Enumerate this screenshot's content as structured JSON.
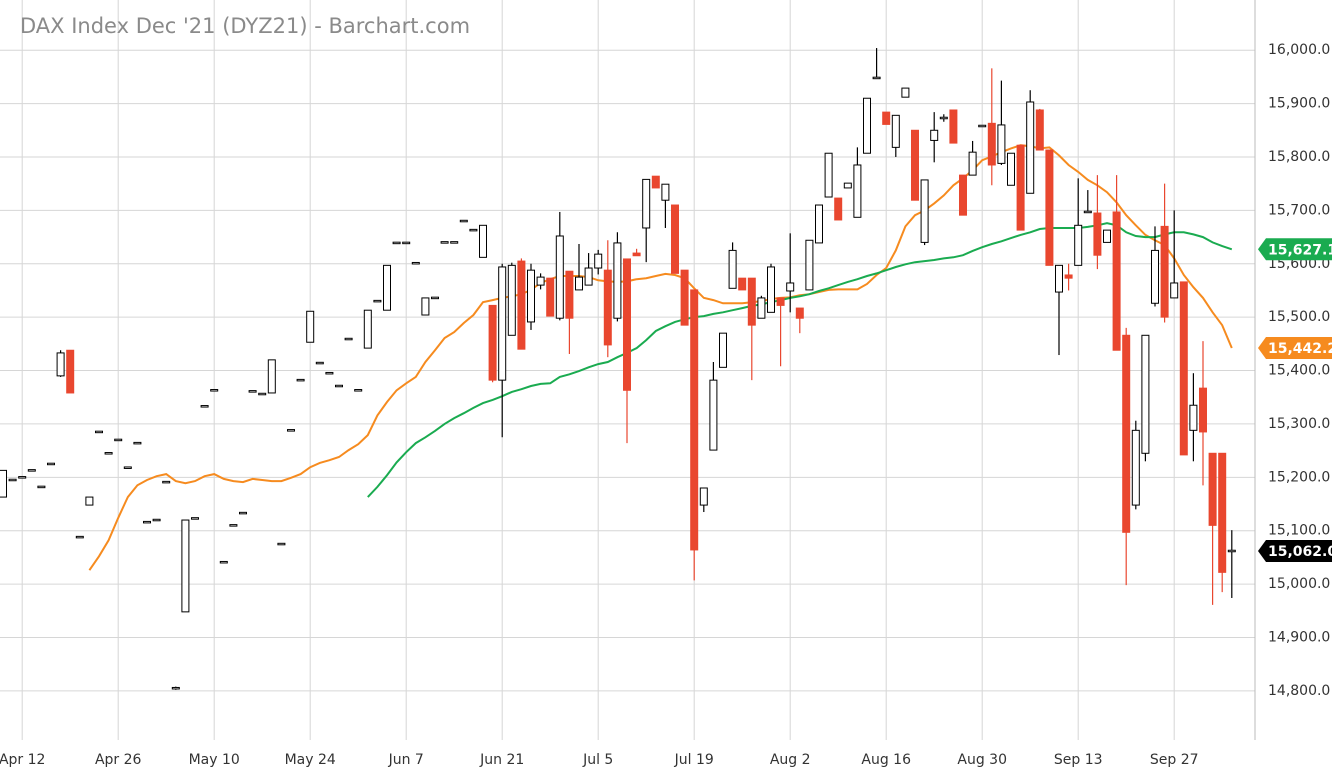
{
  "chart_data": {
    "type": "candlestick",
    "title": "DAX Index Dec '21 (DYZ21) - Barchart.com",
    "categories": [
      null,
      null,
      "Apr 12",
      null,
      null,
      null,
      null,
      null,
      null,
      null,
      null,
      null,
      "Apr 26",
      null,
      null,
      null,
      null,
      null,
      null,
      null,
      null,
      null,
      "May 10",
      null,
      null,
      null,
      null,
      null,
      null,
      null,
      null,
      null,
      "May 24",
      null,
      null,
      null,
      null,
      null,
      null,
      null,
      null,
      null,
      "Jun 7",
      null,
      null,
      null,
      null,
      null,
      null,
      null,
      null,
      null,
      "Jun 21",
      null,
      null,
      null,
      null,
      null,
      null,
      null,
      null,
      null,
      "Jul 5",
      null,
      null,
      null,
      null,
      null,
      null,
      null,
      null,
      null,
      "Jul 19",
      null,
      null,
      null,
      null,
      null,
      null,
      null,
      null,
      null,
      "Aug 2",
      null,
      null,
      null,
      null,
      null,
      null,
      null,
      null,
      null,
      "Aug 16",
      null,
      null,
      null,
      null,
      null,
      null,
      null,
      null,
      null,
      "Aug 30",
      null,
      null,
      null,
      null,
      null,
      null,
      null,
      null,
      null,
      "Sep 13",
      null,
      null,
      null,
      null,
      null,
      null,
      null,
      null,
      null,
      "Sep 27",
      null,
      null,
      null,
      null,
      null,
      null
    ],
    "ohlc": [
      [
        15163,
        15213,
        15163,
        15213
      ],
      [
        15195,
        15195,
        15195,
        15195
      ],
      [
        15200,
        15200,
        15200,
        15200
      ],
      [
        15213,
        15213,
        15213,
        15213
      ],
      [
        15182,
        15182,
        15182,
        15182
      ],
      [
        15225,
        15225,
        15225,
        15225
      ],
      [
        15390,
        15438,
        15388,
        15433
      ],
      [
        15438,
        15438,
        15358,
        15358
      ],
      [
        15088,
        15088,
        15088,
        15088
      ],
      [
        15148,
        15163,
        15148,
        15163
      ],
      [
        15285,
        15285,
        15285,
        15285
      ],
      [
        15245,
        15245,
        15245,
        15245
      ],
      [
        15270,
        15270,
        15270,
        15270
      ],
      [
        15218,
        15218,
        15218,
        15218
      ],
      [
        15264,
        15264,
        15264,
        15264
      ],
      [
        15116,
        15116,
        15116,
        15116
      ],
      [
        15120,
        15120,
        15120,
        15120
      ],
      [
        15191,
        15191,
        15191,
        15191
      ],
      [
        14805,
        14808,
        14802,
        14805
      ],
      [
        14948,
        15120,
        14948,
        15120
      ],
      [
        15123,
        15123,
        15123,
        15123
      ],
      [
        15333,
        15333,
        15333,
        15333
      ],
      [
        15363,
        15363,
        15363,
        15363
      ],
      [
        15041,
        15041,
        15041,
        15041
      ],
      [
        15110,
        15110,
        15110,
        15110
      ],
      [
        15133,
        15133,
        15133,
        15133
      ],
      [
        15361,
        15361,
        15361,
        15361
      ],
      [
        15356,
        15356,
        15356,
        15356
      ],
      [
        15358,
        15420,
        15358,
        15420
      ],
      [
        15075,
        15075,
        15075,
        15075
      ],
      [
        15288,
        15288,
        15288,
        15288
      ],
      [
        15382,
        15382,
        15382,
        15382
      ],
      [
        15453,
        15511,
        15453,
        15511
      ],
      [
        15414,
        15414,
        15414,
        15414
      ],
      [
        15395,
        15395,
        15395,
        15395
      ],
      [
        15371,
        15371,
        15371,
        15371
      ],
      [
        15459,
        15459,
        15459,
        15459
      ],
      [
        15363,
        15363,
        15363,
        15363
      ],
      [
        15442,
        15513,
        15442,
        15513
      ],
      [
        15530,
        15530,
        15530,
        15530
      ],
      [
        15513,
        15597,
        15513,
        15597
      ],
      [
        15639,
        15639,
        15639,
        15639
      ],
      [
        15639,
        15639,
        15639,
        15639
      ],
      [
        15601,
        15601,
        15601,
        15601
      ],
      [
        15504,
        15536,
        15504,
        15536
      ],
      [
        15536,
        15536,
        15536,
        15536
      ],
      [
        15640,
        15640,
        15640,
        15640
      ],
      [
        15640,
        15640,
        15640,
        15640
      ],
      [
        15680,
        15680,
        15680,
        15680
      ],
      [
        15663,
        15663,
        15663,
        15663
      ],
      [
        15612,
        15672,
        15612,
        15672
      ],
      [
        15522,
        15522,
        15378,
        15382
      ],
      [
        15382,
        15600,
        15275,
        15594
      ],
      [
        15466,
        15602,
        15466,
        15597
      ],
      [
        15605,
        15610,
        15440,
        15440
      ],
      [
        15491,
        15600,
        15476,
        15588
      ],
      [
        15560,
        15582,
        15552,
        15575
      ],
      [
        15573,
        15573,
        15502,
        15502
      ],
      [
        15498,
        15697,
        15494,
        15652
      ],
      [
        15586,
        15586,
        15431,
        15498
      ],
      [
        15551,
        15637,
        15551,
        15575
      ],
      [
        15560,
        15620,
        15560,
        15592
      ],
      [
        15592,
        15626,
        15580,
        15618
      ],
      [
        15588,
        15644,
        15425,
        15448
      ],
      [
        15498,
        15659,
        15492,
        15639
      ],
      [
        15609,
        15609,
        15264,
        15363
      ],
      [
        15620,
        15628,
        15615,
        15615
      ],
      [
        15667,
        15758,
        15603,
        15758
      ],
      [
        15764,
        15764,
        15742,
        15742
      ],
      [
        15719,
        15749,
        15667,
        15749
      ],
      [
        15710,
        15710,
        15582,
        15582
      ],
      [
        15588,
        15588,
        15485,
        15485
      ],
      [
        15551,
        15551,
        15007,
        15064
      ],
      [
        15148,
        15180,
        15135,
        15180
      ],
      [
        15251,
        15416,
        15251,
        15382
      ],
      [
        15406,
        15470,
        15406,
        15470
      ],
      [
        15554,
        15640,
        15554,
        15625
      ],
      [
        15573,
        15573,
        15551,
        15551
      ],
      [
        15573,
        15573,
        15382,
        15485
      ],
      [
        15498,
        15540,
        15498,
        15536
      ],
      [
        15509,
        15600,
        15509,
        15594
      ],
      [
        15536,
        15536,
        15408,
        15522
      ],
      [
        15549,
        15657,
        15509,
        15564
      ],
      [
        15517,
        15517,
        15470,
        15498
      ],
      [
        15551,
        15644,
        15551,
        15644
      ],
      [
        15639,
        15710,
        15639,
        15710
      ],
      [
        15725,
        15807,
        15725,
        15807
      ],
      [
        15723,
        15723,
        15682,
        15682
      ],
      [
        15742,
        15751,
        15742,
        15751
      ],
      [
        15687,
        15818,
        15687,
        15785
      ],
      [
        15807,
        15910,
        15807,
        15910
      ],
      [
        15948,
        16004,
        15948,
        15948
      ],
      [
        15884,
        15884,
        15861,
        15861
      ],
      [
        15818,
        15878,
        15800,
        15878
      ],
      [
        15912,
        15929,
        15912,
        15929
      ],
      [
        15850,
        15850,
        15719,
        15719
      ],
      [
        15640,
        15757,
        15635,
        15757
      ],
      [
        15831,
        15884,
        15790,
        15850
      ],
      [
        15873,
        15880,
        15866,
        15873
      ],
      [
        15888,
        15888,
        15826,
        15826
      ],
      [
        15766,
        15766,
        15691,
        15691
      ],
      [
        15766,
        15830,
        15766,
        15809
      ],
      [
        15858,
        15858,
        15858,
        15858
      ],
      [
        15863,
        15966,
        15747,
        15785
      ],
      [
        15788,
        15943,
        15785,
        15860
      ],
      [
        15747,
        15807,
        15747,
        15807
      ],
      [
        15822,
        15822,
        15663,
        15663
      ],
      [
        15732,
        15925,
        15732,
        15903
      ],
      [
        15888,
        15890,
        15813,
        15813
      ],
      [
        15813,
        15813,
        15597,
        15597
      ],
      [
        15547,
        15597,
        15429,
        15597
      ],
      [
        15579,
        15600,
        15550,
        15573
      ],
      [
        15597,
        15760,
        15597,
        15672
      ],
      [
        15697,
        15738,
        15697,
        15697
      ],
      [
        15695,
        15766,
        15590,
        15616
      ],
      [
        15640,
        15663,
        15640,
        15663
      ],
      [
        15697,
        15766,
        15438,
        15438
      ],
      [
        15466,
        15480,
        14998,
        15097
      ],
      [
        15148,
        15306,
        15140,
        15288
      ],
      [
        15245,
        15466,
        15230,
        15466
      ],
      [
        15526,
        15670,
        15520,
        15625
      ],
      [
        15670,
        15750,
        15490,
        15500
      ],
      [
        15536,
        15700,
        15536,
        15564
      ],
      [
        15566,
        15566,
        15242,
        15242
      ],
      [
        15288,
        15395,
        15230,
        15335
      ],
      [
        15367,
        15455,
        15185,
        15285
      ],
      [
        15245,
        15245,
        14961,
        15110
      ],
      [
        15245,
        15245,
        14985,
        15022
      ],
      [
        15062,
        15101,
        14974,
        15062
      ]
    ],
    "up_color": "#ffffff",
    "down_color": "#e9472f",
    "last_label": {
      "value": 15062.0,
      "label": "15,062.0"
    },
    "last_label_color": "#000000",
    "series": [
      {
        "color": "#f68b1f",
        "last_label": {
          "value": 15442.2,
          "label": "15,442.2"
        },
        "values": [
          null,
          null,
          null,
          null,
          null,
          null,
          null,
          null,
          null,
          15026,
          15052,
          15082,
          15124,
          15163,
          15185,
          15195,
          15202,
          15206,
          15193,
          15189,
          15193,
          15202,
          15206,
          15197,
          15193,
          15191,
          15197,
          15195,
          15193,
          15193,
          15199,
          15206,
          15219,
          15227,
          15232,
          15238,
          15251,
          15262,
          15279,
          15316,
          15341,
          15363,
          15376,
          15388,
          15416,
          15438,
          15461,
          15472,
          15489,
          15504,
          15528,
          15532,
          15536,
          15539,
          15543,
          15551,
          15564,
          15571,
          15577,
          15577,
          15577,
          15575,
          15569,
          15567,
          15566,
          15567,
          15571,
          15573,
          15577,
          15581,
          15579,
          15573,
          15554,
          15536,
          15532,
          15526,
          15526,
          15526,
          15528,
          15530,
          15534,
          15536,
          15537,
          15541,
          15543,
          15547,
          15551,
          15552,
          15552,
          15552,
          15562,
          15579,
          15592,
          15625,
          15670,
          15691,
          15700,
          15713,
          15728,
          15747,
          15760,
          15775,
          15794,
          15801,
          15809,
          15816,
          15822,
          15820,
          15816,
          15818,
          15803,
          15785,
          15772,
          15757,
          15747,
          15734,
          15715,
          15691,
          15672,
          15654,
          15644,
          15635,
          15610,
          15579,
          15556,
          15536,
          15509,
          15485,
          15442.2
        ]
      },
      {
        "color": "#1aab50",
        "last_label": {
          "value": 15627.1,
          "label": "15,627.1"
        },
        "values": [
          null,
          null,
          null,
          null,
          null,
          null,
          null,
          null,
          null,
          null,
          null,
          null,
          null,
          null,
          null,
          null,
          null,
          null,
          null,
          null,
          null,
          null,
          null,
          null,
          null,
          null,
          null,
          null,
          null,
          null,
          null,
          null,
          null,
          null,
          null,
          null,
          null,
          null,
          15163,
          15182,
          15204,
          15228,
          15247,
          15264,
          15275,
          15287,
          15300,
          15311,
          15320,
          15330,
          15339,
          15345,
          15352,
          15360,
          15365,
          15371,
          15375,
          15376,
          15388,
          15393,
          15399,
          15406,
          15412,
          15416,
          15425,
          15433,
          15442,
          15457,
          15474,
          15483,
          15491,
          15496,
          15500,
          15502,
          15506,
          15509,
          15513,
          15517,
          15521,
          15524,
          15528,
          15532,
          15536,
          15539,
          15543,
          15549,
          15554,
          15560,
          15566,
          15571,
          15577,
          15582,
          15588,
          15594,
          15599,
          15603,
          15605,
          15607,
          15610,
          15612,
          15616,
          15624,
          15631,
          15637,
          15642,
          15648,
          15654,
          15659,
          15665,
          15667,
          15667,
          15667,
          15667,
          15669,
          15672,
          15676,
          15672,
          15659,
          15652,
          15650,
          15650,
          15655,
          15659,
          15659,
          15655,
          15650,
          15640,
          15633,
          15627.1
        ]
      }
    ],
    "ylim": [
      14708,
      16094
    ],
    "yticks": [
      {
        "value": 14800,
        "label": "14,800.0"
      },
      {
        "value": 14900,
        "label": "14,900.0"
      },
      {
        "value": 15000,
        "label": "15,000.0"
      },
      {
        "value": 15100,
        "label": "15,100.0"
      },
      {
        "value": 15200,
        "label": "15,200.0"
      },
      {
        "value": 15300,
        "label": "15,300.0"
      },
      {
        "value": 15400,
        "label": "15,400.0"
      },
      {
        "value": 15500,
        "label": "15,500.0"
      },
      {
        "value": 15600,
        "label": "15,600.0"
      },
      {
        "value": 15700,
        "label": "15,700.0"
      },
      {
        "value": 15800,
        "label": "15,800.0"
      },
      {
        "value": 15900,
        "label": "15,900.0"
      },
      {
        "value": 16000,
        "label": "16,000.0"
      }
    ],
    "grid": true
  }
}
